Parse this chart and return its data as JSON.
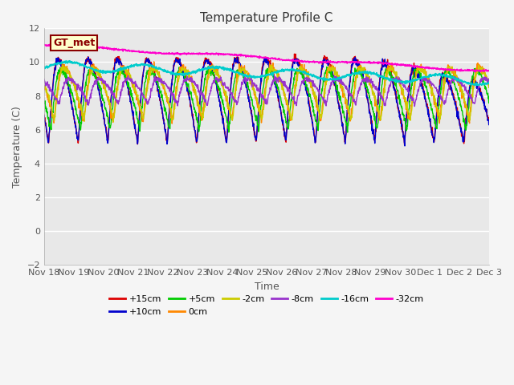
{
  "title": "Temperature Profile C",
  "xlabel": "Time",
  "ylabel": "Temperature (C)",
  "ylim": [
    -2,
    12
  ],
  "xlim": [
    0,
    15
  ],
  "yticks": [
    -2,
    0,
    2,
    4,
    6,
    8,
    10,
    12
  ],
  "xtick_labels": [
    "Nov 18",
    "Nov 19",
    "Nov 20",
    "Nov 21",
    "Nov 22",
    "Nov 23",
    "Nov 24",
    "Nov 25",
    "Nov 26",
    "Nov 27",
    "Nov 28",
    "Nov 29",
    "Nov 30",
    "Dec 1",
    "Dec 2",
    "Dec 3"
  ],
  "legend_label": "GT_met",
  "series_labels": [
    "+15cm",
    "+10cm",
    "+5cm",
    "0cm",
    "-2cm",
    "-8cm",
    "-16cm",
    "-32cm"
  ],
  "series_colors": [
    "#dd0000",
    "#0000cc",
    "#00cc00",
    "#ff8800",
    "#cccc00",
    "#9933cc",
    "#00cccc",
    "#ff00cc"
  ],
  "figsize": [
    6.4,
    4.8
  ],
  "dpi": 100
}
